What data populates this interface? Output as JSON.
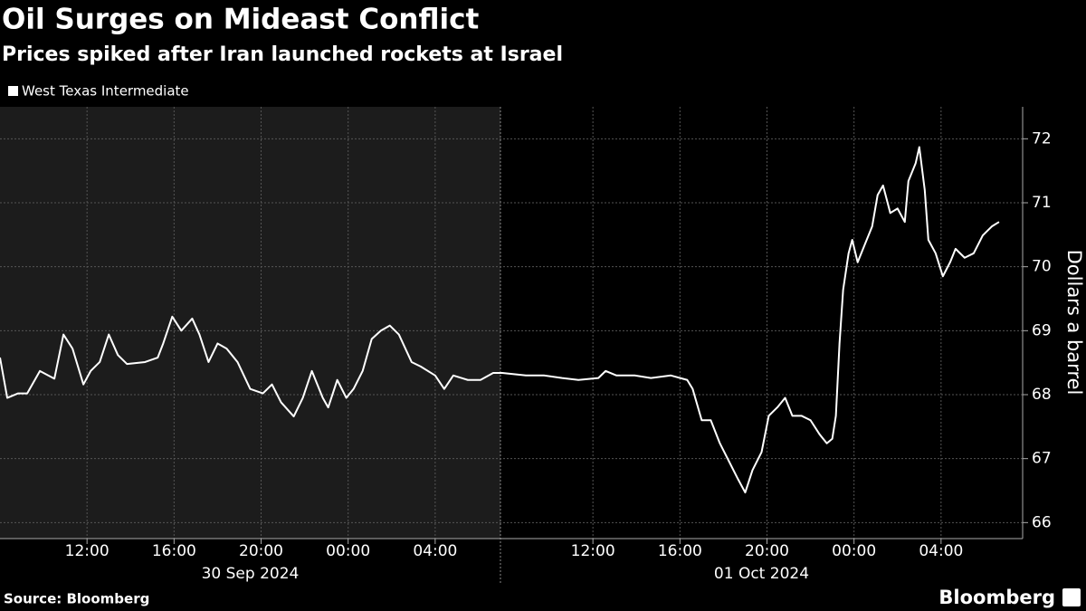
{
  "chart_data": {
    "type": "line",
    "title": "Oil Surges on Mideast Conflict",
    "subtitle": "Prices spiked after Iran launched rockets at Israel",
    "y_label": "Dollars a barrel",
    "source": "Source: Bloomberg",
    "brand": "Bloomberg",
    "grid": true,
    "background": "#000000",
    "shade_color": "#1c1c1c",
    "sessions": [
      {
        "label": "30 Sep 2024",
        "start": "2024-09-30T08:00",
        "end": "2024-10-01T07:00",
        "shaded": true
      },
      {
        "label": "01 Oct 2024",
        "start": "2024-10-01T07:45",
        "end": "2024-10-02T07:45",
        "shaded": false
      }
    ],
    "ylim": [
      65.75,
      72.5
    ],
    "yticks": [
      66,
      67,
      68,
      69,
      70,
      71,
      72
    ],
    "xticks": [
      {
        "value": "2024-09-30T12:00",
        "label": "12:00"
      },
      {
        "value": "2024-09-30T16:00",
        "label": "16:00"
      },
      {
        "value": "2024-09-30T20:00",
        "label": "20:00"
      },
      {
        "value": "2024-10-01T00:00",
        "label": "00:00"
      },
      {
        "value": "2024-10-01T04:00",
        "label": "04:00"
      },
      {
        "value": "2024-10-01T12:00",
        "label": "12:00"
      },
      {
        "value": "2024-10-01T16:00",
        "label": "16:00"
      },
      {
        "value": "2024-10-01T20:00",
        "label": "20:00"
      },
      {
        "value": "2024-10-02T00:00",
        "label": "00:00"
      },
      {
        "value": "2024-10-02T04:00",
        "label": "04:00"
      }
    ],
    "x": [
      "2024-09-30T08:00",
      "2024-09-30T08:20",
      "2024-09-30T08:50",
      "2024-09-30T09:15",
      "2024-09-30T09:50",
      "2024-09-30T10:30",
      "2024-09-30T10:55",
      "2024-09-30T11:20",
      "2024-09-30T11:50",
      "2024-09-30T12:10",
      "2024-09-30T12:35",
      "2024-09-30T13:00",
      "2024-09-30T13:25",
      "2024-09-30T13:50",
      "2024-09-30T14:40",
      "2024-09-30T15:15",
      "2024-09-30T15:30",
      "2024-09-30T15:55",
      "2024-09-30T16:20",
      "2024-09-30T16:50",
      "2024-09-30T17:10",
      "2024-09-30T17:35",
      "2024-09-30T18:00",
      "2024-09-30T18:25",
      "2024-09-30T18:55",
      "2024-09-30T19:30",
      "2024-09-30T20:05",
      "2024-09-30T20:30",
      "2024-09-30T20:55",
      "2024-09-30T21:30",
      "2024-09-30T21:55",
      "2024-09-30T22:20",
      "2024-09-30T22:50",
      "2024-09-30T23:05",
      "2024-09-30T23:30",
      "2024-09-30T23:55",
      "2024-10-01T00:15",
      "2024-10-01T00:40",
      "2024-10-01T01:05",
      "2024-10-01T01:30",
      "2024-10-01T01:55",
      "2024-10-01T02:20",
      "2024-10-01T02:55",
      "2024-10-01T03:20",
      "2024-10-01T04:00",
      "2024-10-01T04:25",
      "2024-10-01T04:50",
      "2024-10-01T05:30",
      "2024-10-01T06:05",
      "2024-10-01T06:40",
      "2024-10-01T07:50",
      "2024-10-01T08:55",
      "2024-10-01T09:45",
      "2024-10-01T10:35",
      "2024-10-01T11:20",
      "2024-10-01T12:15",
      "2024-10-01T12:35",
      "2024-10-01T13:05",
      "2024-10-01T13:55",
      "2024-10-01T14:40",
      "2024-10-01T15:35",
      "2024-10-01T16:20",
      "2024-10-01T16:35",
      "2024-10-01T17:00",
      "2024-10-01T17:25",
      "2024-10-01T17:50",
      "2024-10-01T18:15",
      "2024-10-01T18:40",
      "2024-10-01T19:00",
      "2024-10-01T19:20",
      "2024-10-01T19:45",
      "2024-10-01T20:05",
      "2024-10-01T20:30",
      "2024-10-01T20:50",
      "2024-10-01T21:10",
      "2024-10-01T21:35",
      "2024-10-01T22:00",
      "2024-10-01T22:25",
      "2024-10-01T22:45",
      "2024-10-01T23:00",
      "2024-10-01T23:10",
      "2024-10-01T23:20",
      "2024-10-01T23:30",
      "2024-10-01T23:45",
      "2024-10-01T23:55",
      "2024-10-02T00:10",
      "2024-10-02T00:30",
      "2024-10-02T00:50",
      "2024-10-02T01:05",
      "2024-10-02T01:20",
      "2024-10-02T01:40",
      "2024-10-02T02:00",
      "2024-10-02T02:20",
      "2024-10-02T02:30",
      "2024-10-02T02:50",
      "2024-10-02T03:00",
      "2024-10-02T03:15",
      "2024-10-02T03:25",
      "2024-10-02T03:45",
      "2024-10-02T04:05",
      "2024-10-02T04:25",
      "2024-10-02T04:40",
      "2024-10-02T05:05",
      "2024-10-02T05:30",
      "2024-10-02T05:55",
      "2024-10-02T06:20",
      "2024-10-02T06:40"
    ],
    "series": [
      {
        "name": "West Texas Intermediate",
        "color": "#ffffff",
        "values": [
          68.58,
          67.95,
          68.02,
          68.02,
          68.37,
          68.25,
          68.94,
          68.72,
          68.16,
          68.37,
          68.51,
          68.94,
          68.62,
          68.48,
          68.51,
          68.58,
          68.8,
          69.22,
          69.0,
          69.19,
          68.94,
          68.51,
          68.8,
          68.72,
          68.51,
          68.09,
          68.02,
          68.16,
          67.88,
          67.66,
          67.95,
          68.37,
          67.95,
          67.8,
          68.23,
          67.95,
          68.09,
          68.37,
          68.87,
          69.0,
          69.08,
          68.94,
          68.51,
          68.44,
          68.3,
          68.09,
          68.3,
          68.23,
          68.23,
          68.34,
          68.34,
          68.3,
          68.3,
          68.26,
          68.23,
          68.26,
          68.37,
          68.3,
          68.3,
          68.26,
          68.3,
          68.23,
          68.09,
          67.6,
          67.6,
          67.24,
          66.96,
          66.68,
          66.47,
          66.82,
          67.1,
          67.67,
          67.81,
          67.95,
          67.67,
          67.67,
          67.6,
          67.38,
          67.24,
          67.31,
          67.67,
          68.8,
          69.64,
          70.21,
          70.42,
          70.07,
          70.35,
          70.63,
          71.12,
          71.27,
          70.84,
          70.91,
          70.7,
          71.34,
          71.62,
          71.87,
          71.2,
          70.42,
          70.21,
          69.85,
          70.07,
          70.28,
          70.14,
          70.21,
          70.49,
          70.63,
          70.7
        ]
      }
    ]
  }
}
